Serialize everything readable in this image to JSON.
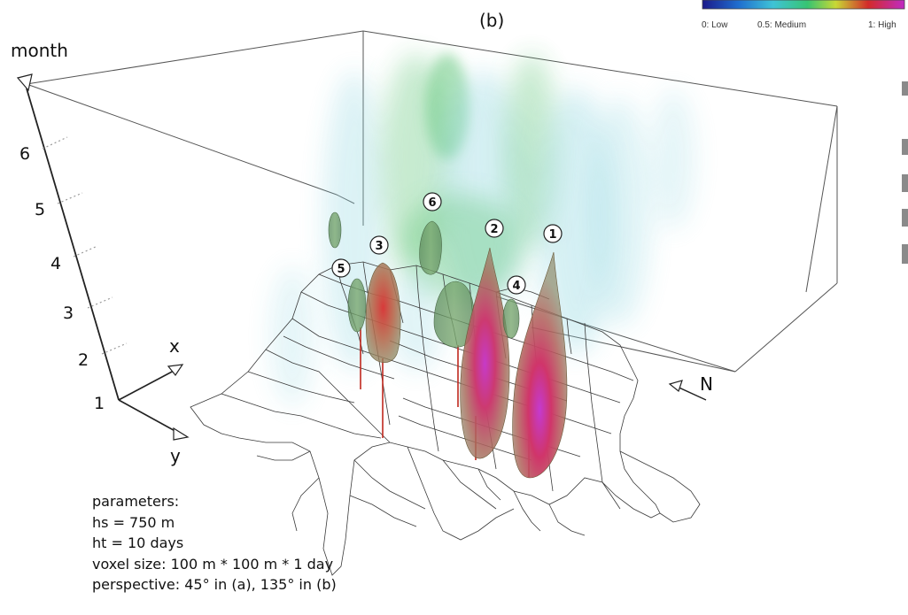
{
  "panel_label": "(b)",
  "colorbar": {
    "low_label": "0: Low",
    "medium_label": "0.5: Medium",
    "high_label": "1: High",
    "colors": [
      "#1c1a8a",
      "#1f6fd0",
      "#3fc3d6",
      "#37c472",
      "#c8d835",
      "#d32a2a",
      "#c02ac3"
    ]
  },
  "axes": {
    "z_title": "month",
    "z_ticks": [
      "6",
      "5",
      "4",
      "3",
      "2",
      "1"
    ],
    "x_label": "x",
    "y_label": "y",
    "north_label": "N"
  },
  "markers": [
    "1",
    "2",
    "3",
    "4",
    "5",
    "6"
  ],
  "parameters": {
    "title": "parameters:",
    "hs": "hs = 750 m",
    "ht": "ht = 10 days",
    "voxel": "voxel size: 100 m * 100 m * 1 day",
    "perspective": "perspective: 45° in (a), 135° in (b)"
  },
  "colors": {
    "box_line": "#555555",
    "map_line": "#3a3a3a",
    "stem": "#c0281e",
    "blob_fill": "#8a7a5c",
    "cloud_green": "#4fbf6a",
    "cloud_cyan": "#8fd6e0"
  }
}
